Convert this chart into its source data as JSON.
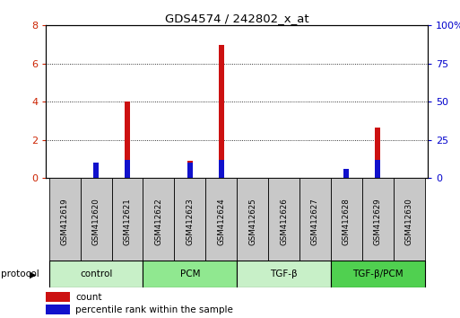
{
  "title": "GDS4574 / 242802_x_at",
  "samples": [
    "GSM412619",
    "GSM412620",
    "GSM412621",
    "GSM412622",
    "GSM412623",
    "GSM412624",
    "GSM412625",
    "GSM412626",
    "GSM412627",
    "GSM412628",
    "GSM412629",
    "GSM412630"
  ],
  "count_values": [
    0,
    0.55,
    4.0,
    0,
    0.9,
    7.0,
    0,
    0,
    0,
    0,
    2.65,
    0
  ],
  "percentile_values": [
    0,
    10,
    12,
    0,
    10,
    12,
    0,
    0,
    0,
    6,
    12,
    0
  ],
  "groups": [
    {
      "label": "control",
      "start": 0,
      "end": 3,
      "color": "#c8f0c8"
    },
    {
      "label": "PCM",
      "start": 3,
      "end": 6,
      "color": "#90e890"
    },
    {
      "label": "TGF-β",
      "start": 6,
      "end": 9,
      "color": "#c8f0c8"
    },
    {
      "label": "TGF-β/PCM",
      "start": 9,
      "end": 12,
      "color": "#50d050"
    }
  ],
  "ylim_left": [
    0,
    8
  ],
  "ylim_right": [
    0,
    100
  ],
  "yticks_left": [
    0,
    2,
    4,
    6,
    8
  ],
  "yticks_right": [
    0,
    25,
    50,
    75,
    100
  ],
  "bar_color_red": "#cc1111",
  "bar_color_blue": "#1111cc",
  "bar_width": 0.18,
  "background_color": "#ffffff",
  "tick_label_color_left": "#cc2200",
  "tick_label_color_right": "#0000cc",
  "protocol_label": "protocol",
  "legend_count_label": "count",
  "legend_percentile_label": "percentile rank within the sample",
  "box_color": "#c8c8c8"
}
